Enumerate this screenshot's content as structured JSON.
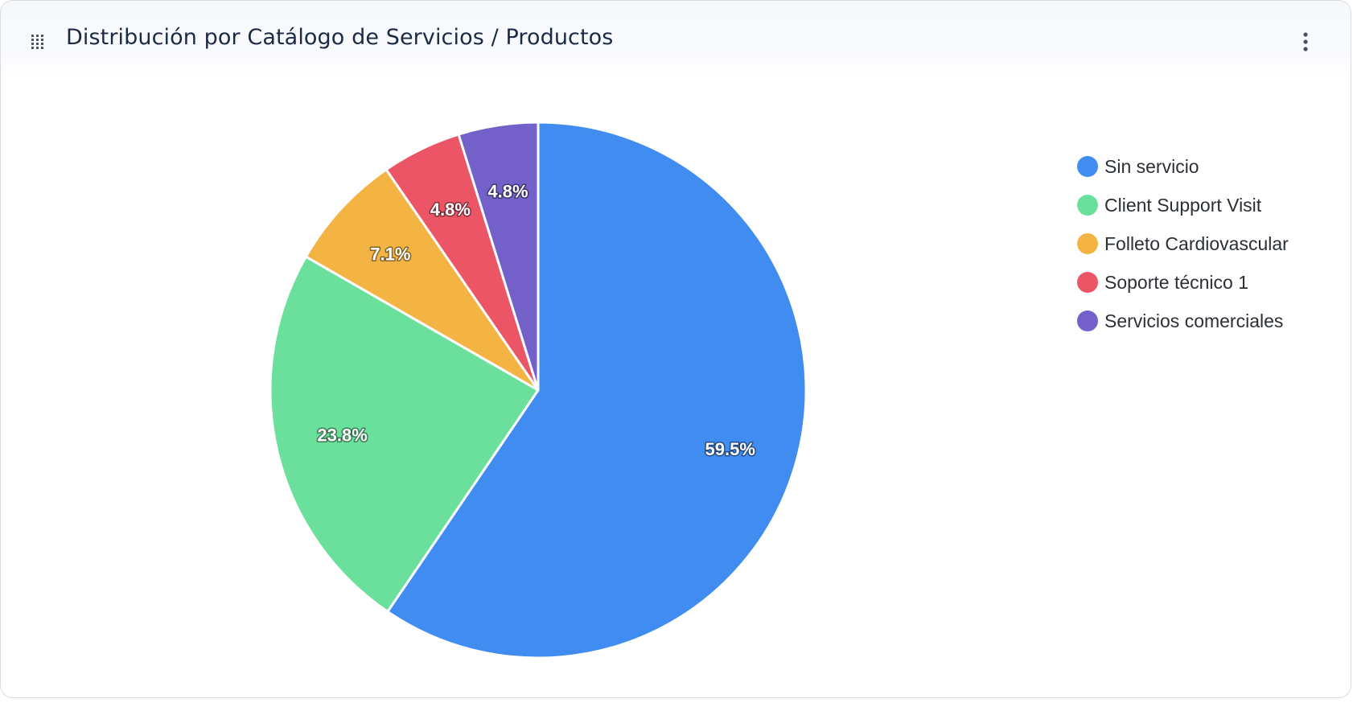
{
  "header": {
    "title": "Distribución por Catálogo de Servicios / Productos",
    "drag_icon": "drag-grid-icon",
    "menu_icon": "more-vertical-icon"
  },
  "chart_data": {
    "type": "pie",
    "title": "Distribución por Catálogo de Servicios / Productos",
    "legend_position": "right",
    "slices": [
      {
        "label": "Sin servicio",
        "value": 59.5,
        "display": "59.5%",
        "color": "#418cf0"
      },
      {
        "label": "Client Support Visit",
        "value": 23.8,
        "display": "23.8%",
        "color": "#6ae09c"
      },
      {
        "label": "Folleto Cardiovascular",
        "value": 7.1,
        "display": "7.1%",
        "color": "#f3b443"
      },
      {
        "label": "Soporte técnico 1",
        "value": 4.8,
        "display": "4.8%",
        "color": "#ec5566"
      },
      {
        "label": "Servicios comerciales",
        "value": 4.8,
        "display": "4.8%",
        "color": "#7360c9"
      }
    ]
  }
}
